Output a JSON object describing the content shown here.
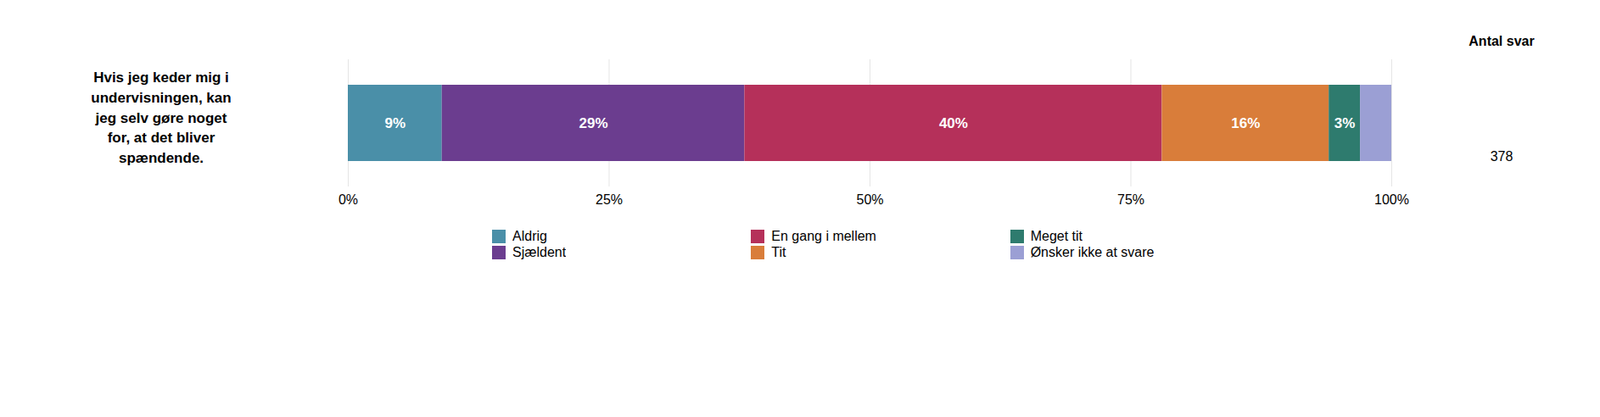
{
  "chart_data": {
    "type": "bar",
    "orientation": "horizontal",
    "stacked": true,
    "title": "Hvis jeg keder mig i\nundervisningen, kan\njeg selv gøre noget\nfor, at det bliver\nspændende.",
    "annotations": [
      "Antal svar",
      "378"
    ],
    "categories": [
      null
    ],
    "series": [
      {
        "name": "Aldrig",
        "color": "#4a8fa8",
        "values": [
          9
        ],
        "value_labels": [
          "9%"
        ]
      },
      {
        "name": "Sjældent",
        "color": "#6b3d8f",
        "values": [
          29
        ],
        "value_labels": [
          "29%"
        ]
      },
      {
        "name": "En gang i mellem",
        "color": "#b5305a",
        "values": [
          40
        ],
        "value_labels": [
          "40%"
        ]
      },
      {
        "name": "Tit",
        "color": "#d97d3a",
        "values": [
          16
        ],
        "value_labels": [
          "16%"
        ]
      },
      {
        "name": "Meget tit",
        "color": "#2e7b6e",
        "values": [
          3
        ],
        "value_labels": [
          "3%"
        ]
      },
      {
        "name": "Ønsker ikke at svare",
        "color": "#9b9fd4",
        "values": [
          3
        ],
        "value_labels": [
          null
        ]
      }
    ],
    "xlim": [
      0,
      100
    ],
    "xticks": [
      {
        "value": 0,
        "label": "0%"
      },
      {
        "value": 25,
        "label": "25%"
      },
      {
        "value": 50,
        "label": "50%"
      },
      {
        "value": 75,
        "label": "75%"
      },
      {
        "value": 100,
        "label": "100%"
      }
    ],
    "grid": true,
    "legend": "bottom",
    "data_labels": true
  }
}
